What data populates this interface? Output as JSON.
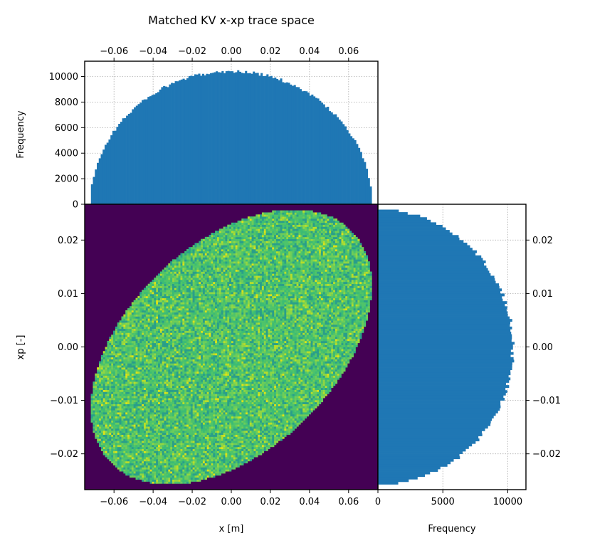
{
  "title": "Matched KV x-xp trace space",
  "chart_data": [
    {
      "id": "top-histogram",
      "type": "bar",
      "description_of_series": "histogram of x",
      "xlim": [
        -0.075,
        0.075
      ],
      "ylim": [
        0,
        11200
      ],
      "ylabel": "Frequency",
      "xticks": [
        "−0.06",
        "−0.04",
        "−0.02",
        "0.00",
        "0.02",
        "0.04",
        "0.06"
      ],
      "xtick_values": [
        -0.06,
        -0.04,
        -0.02,
        0.0,
        0.02,
        0.04,
        0.06
      ],
      "yticks": [
        "0",
        "2000",
        "4000",
        "6000",
        "8000",
        "10000"
      ],
      "ytick_values": [
        0,
        2000,
        4000,
        6000,
        8000,
        10000
      ],
      "x_range": [
        -0.0718,
        0.0718
      ],
      "peak_frequency": 10400,
      "bins": 144,
      "color": "#1f77b4",
      "grid": true
    },
    {
      "id": "main-heatmap",
      "type": "heatmap",
      "xlabel": "x [m]",
      "ylabel": "xp [-]",
      "xlim": [
        -0.075,
        0.075
      ],
      "ylim": [
        -0.0267,
        0.0267
      ],
      "xticks": [
        "−0.06",
        "−0.04",
        "−0.02",
        "0.00",
        "0.02",
        "0.04",
        "0.06"
      ],
      "xtick_values": [
        -0.06,
        -0.04,
        -0.02,
        0.0,
        0.02,
        0.04,
        0.06
      ],
      "yticks": [
        "0.02",
        "0.01",
        "0.00",
        "−0.01",
        "−0.02"
      ],
      "ytick_values": [
        0.02,
        0.01,
        0.0,
        -0.01,
        -0.02
      ],
      "ellipse": {
        "x_max": 0.0718,
        "xp_max": 0.0257,
        "x_at_xp_max": 0.032
      },
      "colormap": "viridis",
      "background_color": "#440154",
      "fill_colors": [
        "#2a9f8a",
        "#3cbc75",
        "#4fc46a",
        "#6ccd5a",
        "#8fd744",
        "#b8de29",
        "#dde318"
      ]
    },
    {
      "id": "right-histogram",
      "type": "bar",
      "orientation": "horizontal",
      "description_of_series": "histogram of xp",
      "ylim": [
        -0.0267,
        0.0267
      ],
      "xlim": [
        0,
        11400
      ],
      "xlabel": "Frequency",
      "xticks": [
        "0",
        "5000",
        "10000"
      ],
      "xtick_values": [
        0,
        5000,
        10000
      ],
      "yticks": [
        "0.02",
        "0.01",
        "0.00",
        "−0.01",
        "−0.02"
      ],
      "ytick_values": [
        0.02,
        0.01,
        0.0,
        -0.01,
        -0.02
      ],
      "xp_range": [
        -0.0257,
        0.0257
      ],
      "peak_frequency": 10400,
      "bins": 108,
      "color": "#1f77b4",
      "grid": true
    }
  ]
}
